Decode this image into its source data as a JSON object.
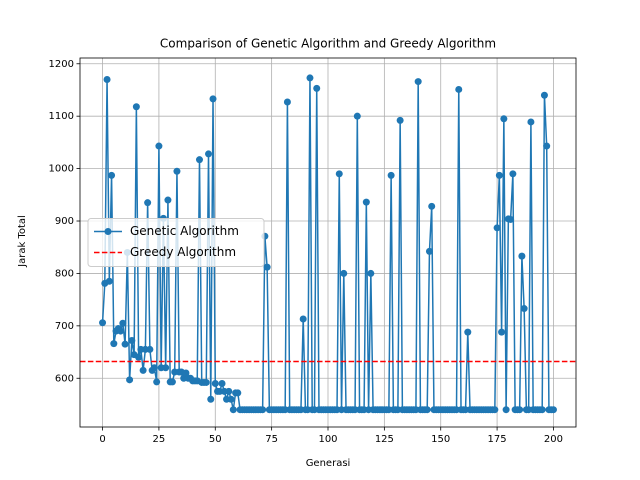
{
  "chart_data": {
    "type": "line",
    "title": "Comparison of Genetic Algorithm and Greedy Algorithm",
    "xlabel": "Generasi",
    "ylabel": "Jarak Total",
    "xlim": [
      -10,
      210
    ],
    "ylim": [
      507,
      1211
    ],
    "xticks": [
      0,
      25,
      50,
      75,
      100,
      125,
      150,
      175,
      200
    ],
    "yticks": [
      600,
      700,
      800,
      900,
      1000,
      1100,
      1200
    ],
    "grid": true,
    "legend": "center left",
    "x": [
      0,
      1,
      2,
      3,
      4,
      5,
      6,
      7,
      8,
      9,
      10,
      11,
      12,
      13,
      14,
      15,
      16,
      17,
      18,
      19,
      20,
      21,
      22,
      23,
      24,
      25,
      26,
      27,
      28,
      29,
      30,
      31,
      32,
      33,
      34,
      35,
      36,
      37,
      38,
      39,
      40,
      41,
      42,
      43,
      44,
      45,
      46,
      47,
      48,
      49,
      50,
      51,
      52,
      53,
      54,
      55,
      56,
      57,
      58,
      59,
      60,
      61,
      62,
      63,
      64,
      65,
      66,
      67,
      68,
      69,
      70,
      71,
      72,
      73,
      74,
      75,
      76,
      77,
      78,
      79,
      80,
      81,
      82,
      83,
      84,
      85,
      86,
      87,
      88,
      89,
      90,
      91,
      92,
      93,
      94,
      95,
      96,
      97,
      98,
      99,
      100,
      101,
      102,
      103,
      104,
      105,
      106,
      107,
      108,
      109,
      110,
      111,
      112,
      113,
      114,
      115,
      116,
      117,
      118,
      119,
      120,
      121,
      122,
      123,
      124,
      125,
      126,
      127,
      128,
      129,
      130,
      131,
      132,
      133,
      134,
      135,
      136,
      137,
      138,
      139,
      140,
      141,
      142,
      143,
      144,
      145,
      146,
      147,
      148,
      149,
      150,
      151,
      152,
      153,
      154,
      155,
      156,
      157,
      158,
      159,
      160,
      161,
      162,
      163,
      164,
      165,
      166,
      167,
      168,
      169,
      170,
      171,
      172,
      173,
      174,
      175,
      176,
      177,
      178,
      179,
      180,
      181,
      182,
      183,
      184,
      185,
      186,
      187,
      188,
      189,
      190,
      191,
      192,
      193,
      194,
      195,
      196,
      197,
      198,
      199,
      200
    ],
    "series": [
      {
        "name": "Genetic Algorithm",
        "color": "#1f77b4",
        "marker": "o",
        "values": [
          706,
          781,
          1170,
          785,
          987,
          666,
          690,
          695,
          690,
          705,
          665,
          840,
          597,
          672,
          645,
          1118,
          640,
          655,
          615,
          655,
          935,
          655,
          615,
          620,
          593,
          1043,
          620,
          905,
          620,
          940,
          593,
          593,
          612,
          995,
          612,
          612,
          600,
          610,
          600,
          600,
          595,
          595,
          595,
          1017,
          592,
          592,
          592,
          1028,
          560,
          1133,
          590,
          575,
          575,
          590,
          575,
          560,
          575,
          560,
          540,
          572,
          572,
          540,
          540,
          540,
          540,
          540,
          540,
          540,
          540,
          540,
          540,
          540,
          871,
          812,
          540,
          540,
          540,
          540,
          540,
          540,
          540,
          540,
          1127,
          540,
          540,
          540,
          540,
          540,
          540,
          713,
          540,
          540,
          1173,
          540,
          540,
          1153,
          540,
          540,
          540,
          540,
          540,
          540,
          540,
          540,
          540,
          990,
          540,
          800,
          540,
          540,
          540,
          540,
          540,
          1100,
          540,
          540,
          540,
          936,
          540,
          800,
          540,
          540,
          540,
          540,
          540,
          540,
          540,
          540,
          987,
          540,
          540,
          540,
          1092,
          540,
          540,
          540,
          540,
          540,
          540,
          540,
          1166,
          540,
          540,
          540,
          540,
          842,
          928,
          540,
          540,
          540,
          540,
          540,
          540,
          540,
          540,
          540,
          540,
          540,
          1151,
          540,
          540,
          540,
          688,
          540,
          540,
          540,
          540,
          540,
          540,
          540,
          540,
          540,
          540,
          540,
          540,
          887,
          987,
          688,
          1095,
          540,
          904,
          903,
          990,
          540,
          540,
          540,
          833,
          733,
          540,
          540,
          1089,
          540,
          540,
          540,
          540,
          540,
          1140,
          1043,
          540,
          540,
          540
        ]
      }
    ],
    "hlines": [
      {
        "name": "Greedy Algorithm",
        "value": 632,
        "color": "#ff0000",
        "style": "dashed"
      }
    ]
  }
}
